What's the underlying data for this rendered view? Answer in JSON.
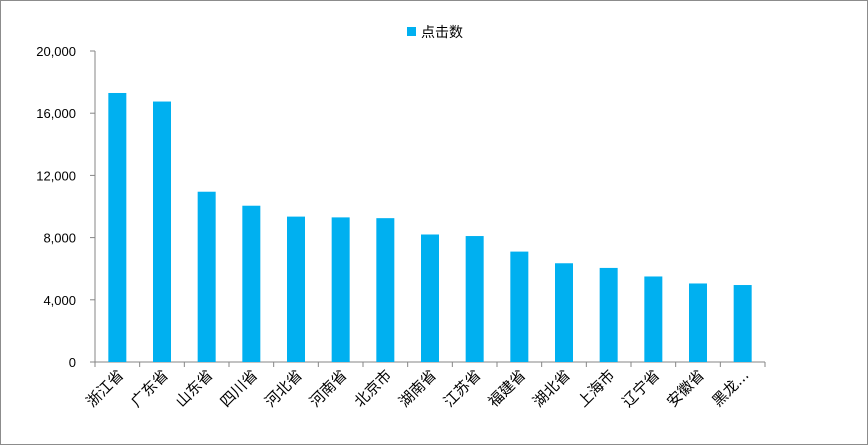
{
  "chart_data": {
    "type": "bar",
    "series": [
      {
        "name": "点击数",
        "color": "#00B0F0",
        "values": [
          17300,
          16750,
          10950,
          10050,
          9350,
          9300,
          9250,
          8200,
          8100,
          7100,
          6350,
          6050,
          5500,
          5050,
          4950
        ]
      }
    ],
    "categories": [
      "浙江省",
      "广东省",
      "山东省",
      "四川省",
      "河北省",
      "河南省",
      "北京市",
      "湖南省",
      "江苏省",
      "福建省",
      "湖北省",
      "上海市",
      "辽宁省",
      "安徽省",
      "黑龙..."
    ],
    "ylim": [
      0,
      20000
    ],
    "yticks": [
      0,
      4000,
      8000,
      12000,
      16000,
      20000
    ],
    "ytick_labels": [
      "0",
      "4,000",
      "8,000",
      "12,000",
      "16,000",
      "20,000"
    ],
    "legend_position": "top",
    "grid": false
  }
}
